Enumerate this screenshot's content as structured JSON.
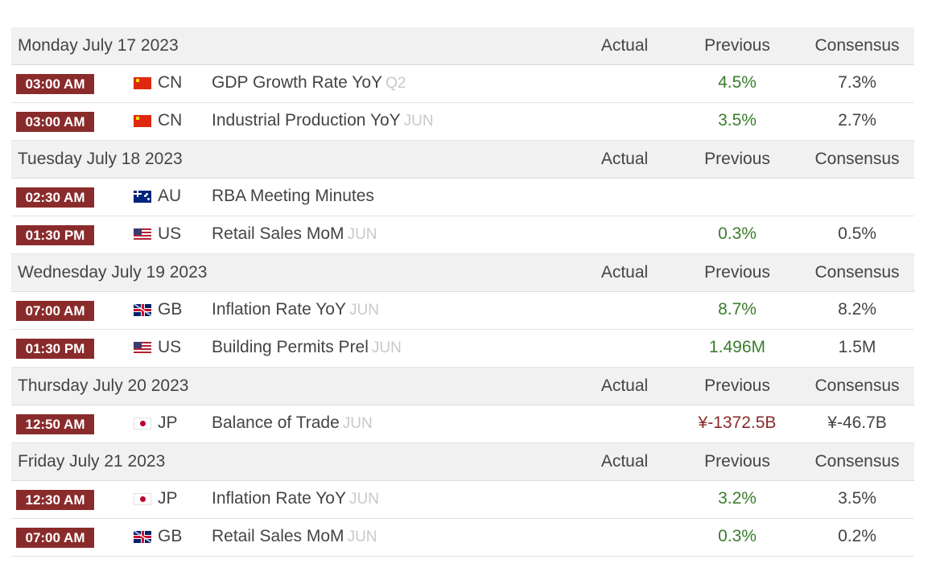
{
  "columns": {
    "actual": "Actual",
    "previous": "Previous",
    "consensus": "Consensus"
  },
  "days": [
    {
      "date": "Monday July 17 2023",
      "events": [
        {
          "time": "03:00 AM",
          "flag": "cn-flag-icon",
          "country": "CN",
          "name": "GDP Growth Rate YoY",
          "ref": "Q2",
          "actual": "",
          "previous": "4.5%",
          "previous_negative": false,
          "consensus": "7.3%"
        },
        {
          "time": "03:00 AM",
          "flag": "cn-flag-icon",
          "country": "CN",
          "name": "Industrial Production YoY",
          "ref": "JUN",
          "actual": "",
          "previous": "3.5%",
          "previous_negative": false,
          "consensus": "2.7%"
        }
      ]
    },
    {
      "date": "Tuesday July 18 2023",
      "events": [
        {
          "time": "02:30 AM",
          "flag": "au-flag-icon",
          "country": "AU",
          "name": "RBA Meeting Minutes",
          "ref": "",
          "actual": "",
          "previous": "",
          "previous_negative": false,
          "consensus": ""
        },
        {
          "time": "01:30 PM",
          "flag": "us-flag-icon",
          "country": "US",
          "name": "Retail Sales MoM",
          "ref": "JUN",
          "actual": "",
          "previous": "0.3%",
          "previous_negative": false,
          "consensus": "0.5%"
        }
      ]
    },
    {
      "date": "Wednesday July 19 2023",
      "events": [
        {
          "time": "07:00 AM",
          "flag": "gb-flag-icon",
          "country": "GB",
          "name": "Inflation Rate YoY",
          "ref": "JUN",
          "actual": "",
          "previous": "8.7%",
          "previous_negative": false,
          "consensus": "8.2%"
        },
        {
          "time": "01:30 PM",
          "flag": "us-flag-icon",
          "country": "US",
          "name": "Building Permits Prel",
          "ref": "JUN",
          "actual": "",
          "previous": "1.496M",
          "previous_negative": false,
          "consensus": "1.5M"
        }
      ]
    },
    {
      "date": "Thursday July 20 2023",
      "events": [
        {
          "time": "12:50 AM",
          "flag": "jp-flag-icon",
          "country": "JP",
          "name": "Balance of Trade",
          "ref": "JUN",
          "actual": "",
          "previous": "¥-1372.5B",
          "previous_negative": true,
          "consensus": "¥-46.7B"
        }
      ]
    },
    {
      "date": "Friday July 21 2023",
      "events": [
        {
          "time": "12:30 AM",
          "flag": "jp-flag-icon",
          "country": "JP",
          "name": "Inflation Rate YoY",
          "ref": "JUN",
          "actual": "",
          "previous": "3.2%",
          "previous_negative": false,
          "consensus": "3.5%"
        },
        {
          "time": "07:00 AM",
          "flag": "gb-flag-icon",
          "country": "GB",
          "name": "Retail Sales MoM",
          "ref": "JUN",
          "actual": "",
          "previous": "0.3%",
          "previous_negative": false,
          "consensus": "0.2%"
        }
      ]
    }
  ],
  "colors": {
    "time_badge": "#8a2b2b",
    "positive_value": "#3a7d2c",
    "negative_value": "#8a2b2b",
    "header_bg": "#f1f1f1",
    "reference_text": "#c9c9c9"
  }
}
